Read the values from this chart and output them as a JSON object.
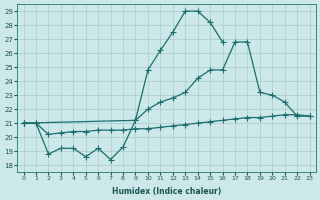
{
  "bg_color": "#cce8e8",
  "grid_color": "#aacccc",
  "line_color": "#1a6e6e",
  "xlabel": "Humidex (Indice chaleur)",
  "xlim": [
    -0.5,
    23.5
  ],
  "ylim": [
    17.5,
    29.5
  ],
  "xticks": [
    0,
    1,
    2,
    3,
    4,
    5,
    6,
    7,
    8,
    9,
    10,
    11,
    12,
    13,
    14,
    15,
    16,
    17,
    18,
    19,
    20,
    21,
    22,
    23
  ],
  "yticks": [
    18,
    19,
    20,
    21,
    22,
    23,
    24,
    25,
    26,
    27,
    28,
    29
  ],
  "line1_x": [
    0,
    1,
    2,
    3,
    4,
    5,
    6,
    7,
    8,
    9,
    10,
    11,
    12,
    13,
    14,
    15,
    16
  ],
  "line1_y": [
    21.0,
    21.0,
    18.8,
    19.2,
    19.2,
    18.6,
    19.2,
    18.4,
    19.3,
    21.2,
    24.8,
    26.2,
    27.5,
    29.0,
    29.0,
    28.2,
    26.8
  ],
  "line2_x": [
    0,
    9,
    10,
    11,
    12,
    13,
    14,
    15,
    16,
    17,
    18,
    19,
    20,
    21,
    22,
    23
  ],
  "line2_y": [
    21.0,
    21.2,
    22.0,
    22.5,
    22.8,
    23.2,
    24.2,
    24.8,
    24.8,
    26.8,
    26.8,
    23.2,
    23.0,
    22.5,
    21.5,
    21.5
  ],
  "line3_x": [
    0,
    1,
    2,
    3,
    4,
    5,
    6,
    7,
    8,
    9,
    10,
    11,
    12,
    13,
    14,
    15,
    16,
    17,
    18,
    19,
    20,
    21,
    22,
    23
  ],
  "line3_y": [
    21.0,
    21.0,
    20.2,
    20.3,
    20.4,
    20.4,
    20.5,
    20.5,
    20.5,
    20.6,
    20.6,
    20.7,
    20.8,
    20.9,
    21.0,
    21.1,
    21.2,
    21.3,
    21.4,
    21.4,
    21.5,
    21.6,
    21.6,
    21.5
  ]
}
